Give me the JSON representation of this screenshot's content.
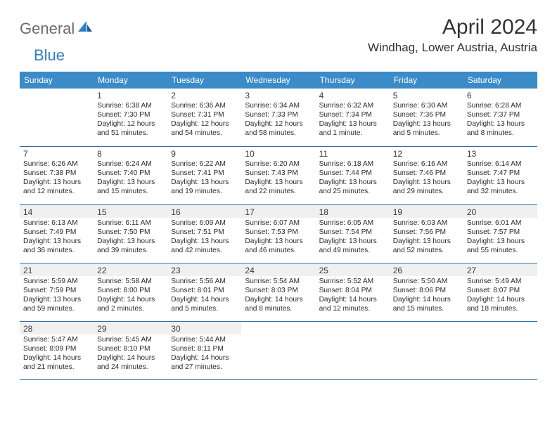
{
  "brand": {
    "word1": "General",
    "word2": "Blue"
  },
  "title": "April 2024",
  "location": "Windhag, Lower Austria, Austria",
  "dow": [
    "Sunday",
    "Monday",
    "Tuesday",
    "Wednesday",
    "Thursday",
    "Friday",
    "Saturday"
  ],
  "colors": {
    "header_bg": "#3b8bc9",
    "rule": "#2f6fa5",
    "shade": "#f0f0f0",
    "logo_gray": "#6b6b6b",
    "logo_blue": "#2f7fc3"
  },
  "weeks": [
    [
      {
        "n": "",
        "sr": "",
        "ss": "",
        "dl": ""
      },
      {
        "n": "1",
        "sr": "Sunrise: 6:38 AM",
        "ss": "Sunset: 7:30 PM",
        "dl": "Daylight: 12 hours and 51 minutes."
      },
      {
        "n": "2",
        "sr": "Sunrise: 6:36 AM",
        "ss": "Sunset: 7:31 PM",
        "dl": "Daylight: 12 hours and 54 minutes."
      },
      {
        "n": "3",
        "sr": "Sunrise: 6:34 AM",
        "ss": "Sunset: 7:33 PM",
        "dl": "Daylight: 12 hours and 58 minutes."
      },
      {
        "n": "4",
        "sr": "Sunrise: 6:32 AM",
        "ss": "Sunset: 7:34 PM",
        "dl": "Daylight: 13 hours and 1 minute."
      },
      {
        "n": "5",
        "sr": "Sunrise: 6:30 AM",
        "ss": "Sunset: 7:36 PM",
        "dl": "Daylight: 13 hours and 5 minutes."
      },
      {
        "n": "6",
        "sr": "Sunrise: 6:28 AM",
        "ss": "Sunset: 7:37 PM",
        "dl": "Daylight: 13 hours and 8 minutes."
      }
    ],
    [
      {
        "n": "7",
        "sr": "Sunrise: 6:26 AM",
        "ss": "Sunset: 7:38 PM",
        "dl": "Daylight: 13 hours and 12 minutes."
      },
      {
        "n": "8",
        "sr": "Sunrise: 6:24 AM",
        "ss": "Sunset: 7:40 PM",
        "dl": "Daylight: 13 hours and 15 minutes."
      },
      {
        "n": "9",
        "sr": "Sunrise: 6:22 AM",
        "ss": "Sunset: 7:41 PM",
        "dl": "Daylight: 13 hours and 19 minutes."
      },
      {
        "n": "10",
        "sr": "Sunrise: 6:20 AM",
        "ss": "Sunset: 7:43 PM",
        "dl": "Daylight: 13 hours and 22 minutes."
      },
      {
        "n": "11",
        "sr": "Sunrise: 6:18 AM",
        "ss": "Sunset: 7:44 PM",
        "dl": "Daylight: 13 hours and 25 minutes."
      },
      {
        "n": "12",
        "sr": "Sunrise: 6:16 AM",
        "ss": "Sunset: 7:46 PM",
        "dl": "Daylight: 13 hours and 29 minutes."
      },
      {
        "n": "13",
        "sr": "Sunrise: 6:14 AM",
        "ss": "Sunset: 7:47 PM",
        "dl": "Daylight: 13 hours and 32 minutes."
      }
    ],
    [
      {
        "n": "14",
        "sr": "Sunrise: 6:13 AM",
        "ss": "Sunset: 7:49 PM",
        "dl": "Daylight: 13 hours and 36 minutes."
      },
      {
        "n": "15",
        "sr": "Sunrise: 6:11 AM",
        "ss": "Sunset: 7:50 PM",
        "dl": "Daylight: 13 hours and 39 minutes."
      },
      {
        "n": "16",
        "sr": "Sunrise: 6:09 AM",
        "ss": "Sunset: 7:51 PM",
        "dl": "Daylight: 13 hours and 42 minutes."
      },
      {
        "n": "17",
        "sr": "Sunrise: 6:07 AM",
        "ss": "Sunset: 7:53 PM",
        "dl": "Daylight: 13 hours and 46 minutes."
      },
      {
        "n": "18",
        "sr": "Sunrise: 6:05 AM",
        "ss": "Sunset: 7:54 PM",
        "dl": "Daylight: 13 hours and 49 minutes."
      },
      {
        "n": "19",
        "sr": "Sunrise: 6:03 AM",
        "ss": "Sunset: 7:56 PM",
        "dl": "Daylight: 13 hours and 52 minutes."
      },
      {
        "n": "20",
        "sr": "Sunrise: 6:01 AM",
        "ss": "Sunset: 7:57 PM",
        "dl": "Daylight: 13 hours and 55 minutes."
      }
    ],
    [
      {
        "n": "21",
        "sr": "Sunrise: 5:59 AM",
        "ss": "Sunset: 7:59 PM",
        "dl": "Daylight: 13 hours and 59 minutes."
      },
      {
        "n": "22",
        "sr": "Sunrise: 5:58 AM",
        "ss": "Sunset: 8:00 PM",
        "dl": "Daylight: 14 hours and 2 minutes."
      },
      {
        "n": "23",
        "sr": "Sunrise: 5:56 AM",
        "ss": "Sunset: 8:01 PM",
        "dl": "Daylight: 14 hours and 5 minutes."
      },
      {
        "n": "24",
        "sr": "Sunrise: 5:54 AM",
        "ss": "Sunset: 8:03 PM",
        "dl": "Daylight: 14 hours and 8 minutes."
      },
      {
        "n": "25",
        "sr": "Sunrise: 5:52 AM",
        "ss": "Sunset: 8:04 PM",
        "dl": "Daylight: 14 hours and 12 minutes."
      },
      {
        "n": "26",
        "sr": "Sunrise: 5:50 AM",
        "ss": "Sunset: 8:06 PM",
        "dl": "Daylight: 14 hours and 15 minutes."
      },
      {
        "n": "27",
        "sr": "Sunrise: 5:49 AM",
        "ss": "Sunset: 8:07 PM",
        "dl": "Daylight: 14 hours and 18 minutes."
      }
    ],
    [
      {
        "n": "28",
        "sr": "Sunrise: 5:47 AM",
        "ss": "Sunset: 8:09 PM",
        "dl": "Daylight: 14 hours and 21 minutes."
      },
      {
        "n": "29",
        "sr": "Sunrise: 5:45 AM",
        "ss": "Sunset: 8:10 PM",
        "dl": "Daylight: 14 hours and 24 minutes."
      },
      {
        "n": "30",
        "sr": "Sunrise: 5:44 AM",
        "ss": "Sunset: 8:11 PM",
        "dl": "Daylight: 14 hours and 27 minutes."
      },
      {
        "n": "",
        "sr": "",
        "ss": "",
        "dl": ""
      },
      {
        "n": "",
        "sr": "",
        "ss": "",
        "dl": ""
      },
      {
        "n": "",
        "sr": "",
        "ss": "",
        "dl": ""
      },
      {
        "n": "",
        "sr": "",
        "ss": "",
        "dl": ""
      }
    ]
  ],
  "shaded_weeks": [
    2,
    3,
    4
  ]
}
